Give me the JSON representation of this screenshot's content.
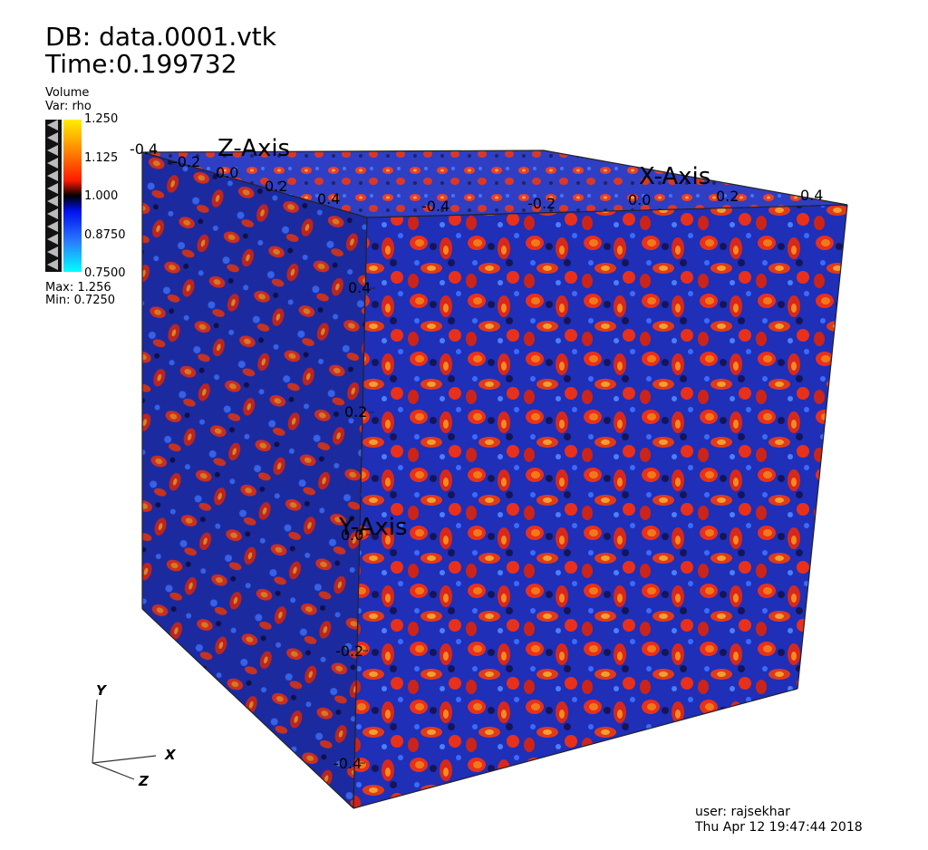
{
  "header": {
    "db_label": "DB: data.0001.vtk",
    "time_label": "Time:0.199732"
  },
  "legend": {
    "plot_type": "Volume",
    "variable": "Var: rho",
    "ticks": [
      "1.250",
      "1.125",
      "1.000",
      "0.8750",
      "0.7500"
    ],
    "max_label": "Max:  1.256",
    "min_label": "Min:  0.7250",
    "colors": [
      "#ffee00",
      "#ff7a00",
      "#ff2200",
      "#d00000",
      "#000000",
      "#0000cc",
      "#2255ff",
      "#33aaff",
      "#00ffff"
    ]
  },
  "axes": {
    "x_title": "X-Axis",
    "y_title": "Y-Axis",
    "z_title": "Z-Axis",
    "x_ticks": [
      "-0.4",
      "-0.2",
      "0.0",
      "0.2",
      "0.4"
    ],
    "y_ticks": [
      "0.4",
      "0.2",
      "0.0",
      "-0.2",
      "-0.4"
    ],
    "z_ticks": [
      "-0.4",
      "-0.2",
      "0.0",
      "0.2",
      "0.4"
    ]
  },
  "triad": {
    "x": "X",
    "y": "Y",
    "z": "Z"
  },
  "footer": {
    "user": "user: rajsekhar",
    "date": "Thu Apr 12 19:47:44 2018"
  },
  "volume": {
    "colors": {
      "background_blue": "#1f2fb8",
      "blob_red": "#e8301a",
      "blob_orange": "#f07a1a",
      "blob_dark": "#14145a"
    }
  }
}
